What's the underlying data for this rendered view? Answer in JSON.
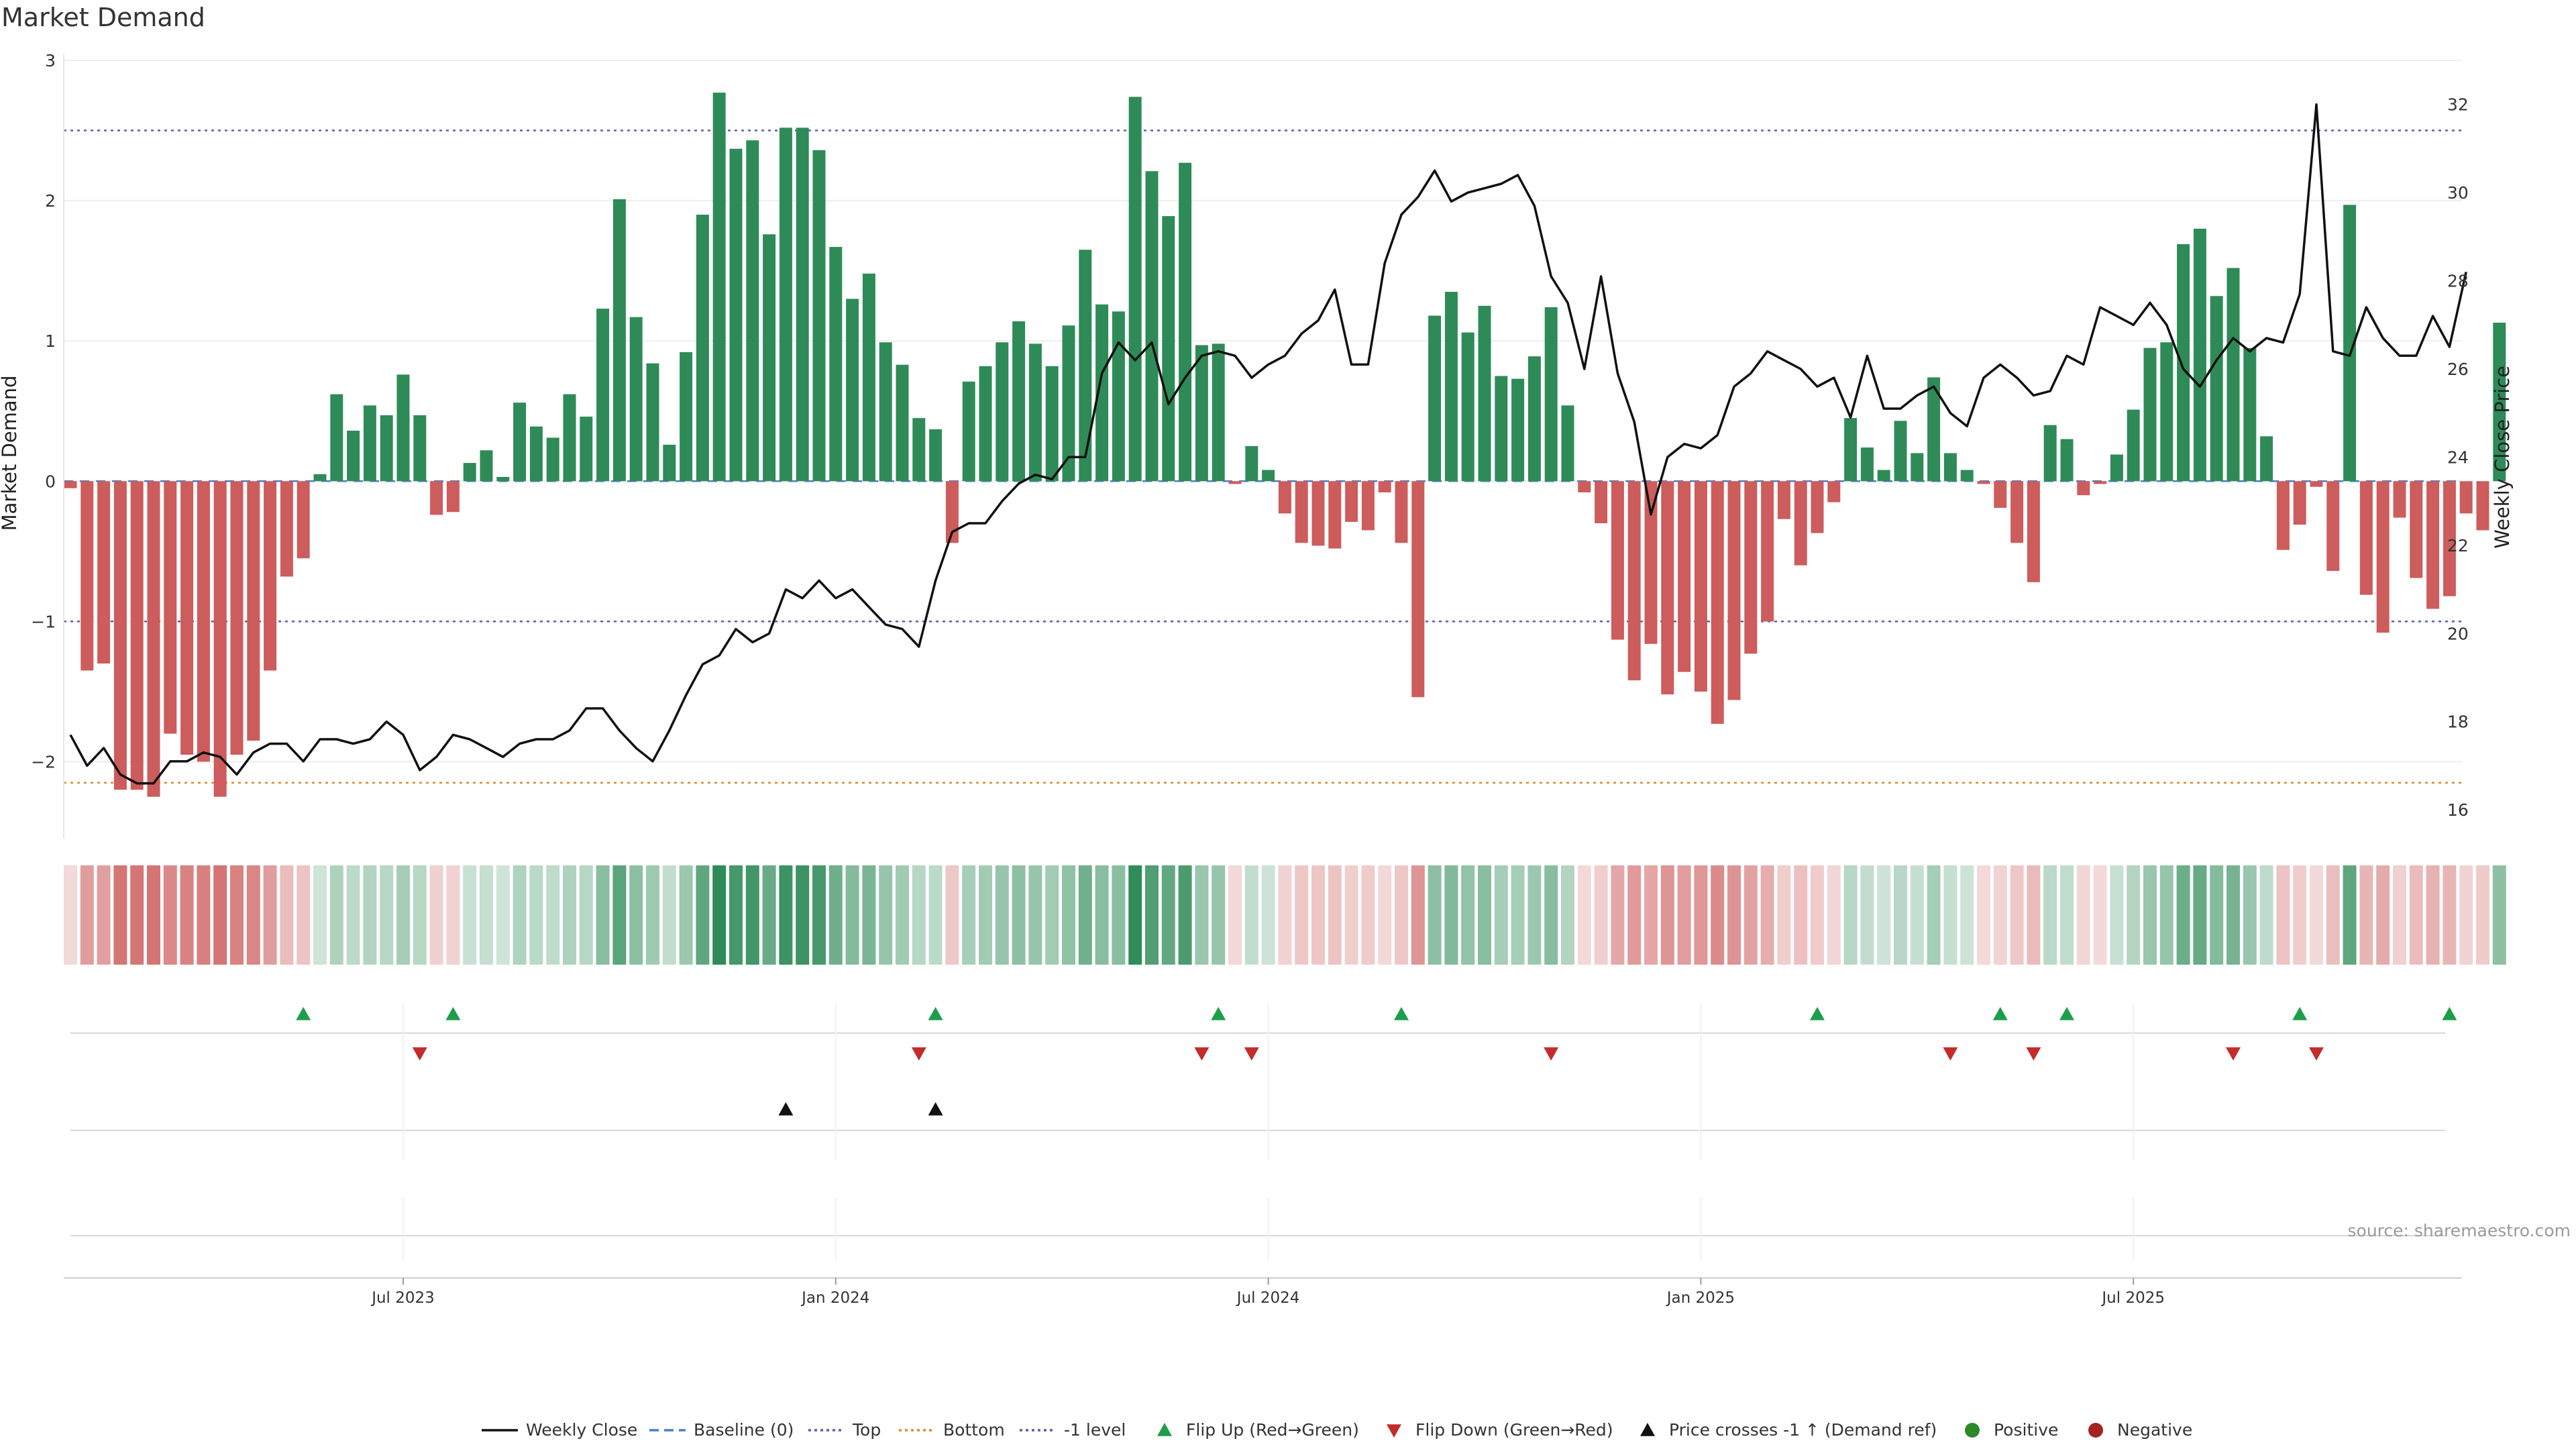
{
  "chart_data": {
    "type": "bar",
    "title": "Market Demand",
    "source": "source: sharemaestro.com",
    "ylabel": "Market Demand",
    "ylabel_right": "Weekly Close Price",
    "ylim": [
      -2.5,
      3.0
    ],
    "ylim_right": [
      15.5,
      33.0
    ],
    "yticks": [
      -2,
      -1,
      0,
      1,
      2,
      3
    ],
    "ytick_labels": [
      "−2",
      "−1",
      "0",
      "1",
      "2",
      "3"
    ],
    "yticks_right": [
      16,
      18,
      20,
      22,
      24,
      26,
      28,
      30,
      32
    ],
    "ytick_labels_right": [
      "16",
      "18",
      "20",
      "22",
      "24",
      "26",
      "28",
      "30",
      "32"
    ],
    "reference_lines": [
      {
        "name": "Top",
        "value": 2.5,
        "color": "#5b5ea6",
        "style": "dotted"
      },
      {
        "name": "Bottom",
        "value": -2.15,
        "color": "#d88a2d",
        "style": "dotted"
      },
      {
        "name": "-1 level",
        "value": -1.0,
        "color": "#5b5ea6",
        "style": "dotted"
      },
      {
        "name": "Baseline (0)",
        "value": 0,
        "color": "#4a7fc1",
        "style": "dashed"
      }
    ],
    "x_start": "2023-01-22",
    "x_labels": [
      "Jul 2023",
      "Jan 2024",
      "Jul 2024",
      "Jan 2025",
      "Jul 2025"
    ],
    "x_label_weeks": [
      20,
      46,
      72,
      98,
      124
    ],
    "colors": {
      "positive": "#2e8b57",
      "negative": "#cd5c5c",
      "price": "#111111",
      "flip_up": "#1e9e4a",
      "flip_down": "#c42b2b",
      "cross": "#111111",
      "pos_dot": "#2a8a2a",
      "neg_dot": "#a52222"
    },
    "demand": [
      -0.05,
      -1.35,
      -1.3,
      -2.2,
      -2.2,
      -2.25,
      -1.8,
      -1.95,
      -2.0,
      -2.25,
      -1.95,
      -1.85,
      -1.35,
      -0.68,
      -0.55,
      0.05,
      0.62,
      0.36,
      0.54,
      0.47,
      0.76,
      0.47,
      -0.24,
      -0.22,
      0.13,
      0.22,
      0.03,
      0.56,
      0.39,
      0.31,
      0.62,
      0.46,
      1.23,
      2.01,
      1.17,
      0.84,
      0.26,
      0.92,
      1.9,
      2.77,
      2.37,
      2.43,
      1.76,
      2.52,
      2.52,
      2.36,
      1.67,
      1.3,
      1.48,
      0.99,
      0.83,
      0.45,
      0.37,
      -0.44,
      0.71,
      0.82,
      0.99,
      1.14,
      0.98,
      0.82,
      1.11,
      1.65,
      1.26,
      1.21,
      2.74,
      2.21,
      1.89,
      2.27,
      0.97,
      0.98,
      -0.02,
      0.25,
      0.08,
      -0.23,
      -0.44,
      -0.46,
      -0.48,
      -0.29,
      -0.35,
      -0.08,
      -0.44,
      -1.54,
      1.18,
      1.35,
      1.06,
      1.25,
      0.75,
      0.73,
      0.89,
      1.24,
      0.54,
      -0.08,
      -0.3,
      -1.13,
      -1.42,
      -1.16,
      -1.52,
      -1.36,
      -1.5,
      -1.73,
      -1.56,
      -1.23,
      -1.0,
      -0.27,
      -0.6,
      -0.37,
      -0.15,
      0.45,
      0.24,
      0.08,
      0.43,
      0.2,
      0.74,
      0.2,
      0.08,
      -0.02,
      -0.19,
      -0.44,
      -0.72,
      0.4,
      0.3,
      -0.1,
      -0.02,
      0.19,
      0.51,
      0.95,
      0.99,
      1.69,
      1.8,
      1.32,
      1.52,
      0.95,
      0.32,
      -0.49,
      -0.31,
      -0.04,
      -0.64,
      1.97,
      -0.81,
      -1.08,
      -0.26,
      -0.69,
      -0.91,
      -0.82,
      -0.23,
      -0.35,
      1.13
    ],
    "weekly_close": [
      17.7,
      17.0,
      17.4,
      16.8,
      16.6,
      16.6,
      17.1,
      17.1,
      17.3,
      17.2,
      16.8,
      17.3,
      17.5,
      17.5,
      17.1,
      17.6,
      17.6,
      17.5,
      17.6,
      18.0,
      17.7,
      16.9,
      17.2,
      17.7,
      17.6,
      17.4,
      17.2,
      17.5,
      17.6,
      17.6,
      17.8,
      18.3,
      18.3,
      17.8,
      17.4,
      17.1,
      17.8,
      18.6,
      19.3,
      19.5,
      20.1,
      19.8,
      20.0,
      21.0,
      20.8,
      21.2,
      20.8,
      21.0,
      20.6,
      20.2,
      20.1,
      19.7,
      21.2,
      22.3,
      22.5,
      22.5,
      23.0,
      23.4,
      23.6,
      23.5,
      24.0,
      24.0,
      25.9,
      26.6,
      26.2,
      26.6,
      25.2,
      25.8,
      26.3,
      26.4,
      26.3,
      25.8,
      26.1,
      26.3,
      26.8,
      27.1,
      27.8,
      26.1,
      26.1,
      28.4,
      29.5,
      29.9,
      30.5,
      29.8,
      30.0,
      30.1,
      30.2,
      30.4,
      29.7,
      28.1,
      27.5,
      26.0,
      28.1,
      25.9,
      24.8,
      22.7,
      24.0,
      24.3,
      24.2,
      24.5,
      25.6,
      25.9,
      26.4,
      26.2,
      26.0,
      25.6,
      25.8,
      24.9,
      26.3,
      25.1,
      25.1,
      25.4,
      25.6,
      25.0,
      24.7,
      25.8,
      26.1,
      25.8,
      25.4,
      25.5,
      26.3,
      26.1,
      27.4,
      27.2,
      27.0,
      27.5,
      27.0,
      26.0,
      25.6,
      26.2,
      26.7,
      26.4,
      26.7,
      26.6,
      27.7,
      32.0,
      26.4,
      26.3,
      27.4,
      26.7,
      26.3,
      26.3,
      27.2,
      26.5,
      28.2
    ],
    "flip_up_weeks": [
      14,
      23,
      52,
      69,
      80,
      105,
      116,
      120,
      134,
      143
    ],
    "flip_down_weeks": [
      21,
      51,
      68,
      71,
      89,
      113,
      118,
      130,
      135
    ],
    "cross_up_weeks": [
      43,
      52
    ],
    "legend": [
      "Weekly Close",
      "Baseline (0)",
      "Top",
      "Bottom",
      "-1 level",
      "Flip Up (Red→Green)",
      "Flip Down (Green→Red)",
      "Price crosses -1 ↑ (Demand ref)",
      "Positive",
      "Negative"
    ],
    "legend_position": "bottom"
  }
}
